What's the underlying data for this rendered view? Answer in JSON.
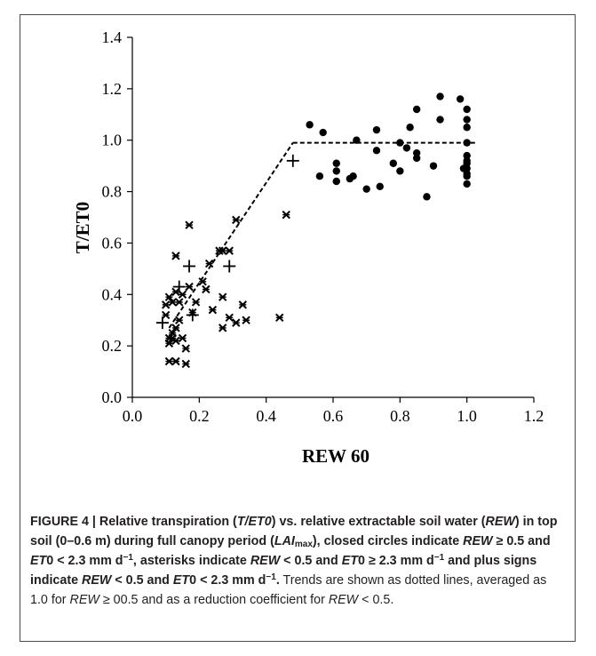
{
  "chart_data": {
    "type": "scatter",
    "xlabel": "REW 60",
    "ylabel": "T/ET0",
    "xlim": [
      0.0,
      1.2
    ],
    "ylim": [
      0.0,
      1.4
    ],
    "xticks": [
      "0.0",
      "0.2",
      "0.4",
      "0.6",
      "0.8",
      "1.0",
      "1.2"
    ],
    "yticks": [
      "0.0",
      "0.2",
      "0.4",
      "0.6",
      "0.8",
      "1.0",
      "1.2",
      "1.4"
    ],
    "grid": false,
    "legend": "none",
    "series": [
      {
        "marker": "circle",
        "points": [
          [
            0.53,
            1.06
          ],
          [
            0.56,
            0.86
          ],
          [
            0.57,
            1.03
          ],
          [
            0.61,
            0.88
          ],
          [
            0.61,
            0.91
          ],
          [
            0.61,
            0.84
          ],
          [
            0.65,
            0.85
          ],
          [
            0.66,
            0.86
          ],
          [
            0.67,
            1.0
          ],
          [
            0.7,
            0.81
          ],
          [
            0.73,
            0.96
          ],
          [
            0.73,
            1.04
          ],
          [
            0.74,
            0.82
          ],
          [
            0.78,
            0.91
          ],
          [
            0.8,
            0.88
          ],
          [
            0.8,
            0.99
          ],
          [
            0.82,
            0.97
          ],
          [
            0.83,
            1.05
          ],
          [
            0.85,
            0.95
          ],
          [
            0.85,
            1.12
          ],
          [
            0.85,
            0.93
          ],
          [
            0.88,
            0.78
          ],
          [
            0.9,
            0.9
          ],
          [
            0.92,
            1.17
          ],
          [
            0.92,
            1.08
          ],
          [
            0.98,
            1.16
          ],
          [
            0.99,
            0.89
          ],
          [
            1.0,
            1.12
          ],
          [
            1.0,
            1.08
          ],
          [
            1.0,
            1.05
          ],
          [
            1.0,
            0.99
          ],
          [
            1.0,
            0.94
          ],
          [
            1.0,
            0.92
          ],
          [
            1.0,
            0.91
          ],
          [
            1.0,
            0.89
          ],
          [
            1.0,
            0.87
          ],
          [
            1.0,
            0.86
          ],
          [
            1.0,
            0.83
          ]
        ]
      },
      {
        "marker": "asterisk",
        "points": [
          [
            0.1,
            0.36
          ],
          [
            0.1,
            0.32
          ],
          [
            0.11,
            0.39
          ],
          [
            0.11,
            0.23
          ],
          [
            0.11,
            0.21
          ],
          [
            0.11,
            0.14
          ],
          [
            0.12,
            0.37
          ],
          [
            0.12,
            0.25
          ],
          [
            0.12,
            0.23
          ],
          [
            0.13,
            0.55
          ],
          [
            0.13,
            0.41
          ],
          [
            0.13,
            0.27
          ],
          [
            0.13,
            0.22
          ],
          [
            0.13,
            0.14
          ],
          [
            0.14,
            0.3
          ],
          [
            0.14,
            0.37
          ],
          [
            0.15,
            0.4
          ],
          [
            0.15,
            0.23
          ],
          [
            0.16,
            0.19
          ],
          [
            0.16,
            0.13
          ],
          [
            0.17,
            0.43
          ],
          [
            0.17,
            0.67
          ],
          [
            0.18,
            0.33
          ],
          [
            0.19,
            0.37
          ],
          [
            0.21,
            0.45
          ],
          [
            0.22,
            0.42
          ],
          [
            0.23,
            0.52
          ],
          [
            0.24,
            0.34
          ],
          [
            0.26,
            0.57
          ],
          [
            0.27,
            0.57
          ],
          [
            0.27,
            0.39
          ],
          [
            0.27,
            0.27
          ],
          [
            0.29,
            0.57
          ],
          [
            0.29,
            0.31
          ],
          [
            0.31,
            0.29
          ],
          [
            0.31,
            0.69
          ],
          [
            0.33,
            0.36
          ],
          [
            0.34,
            0.3
          ],
          [
            0.44,
            0.31
          ],
          [
            0.46,
            0.71
          ]
        ]
      },
      {
        "marker": "plus",
        "points": [
          [
            0.09,
            0.29
          ],
          [
            0.14,
            0.43
          ],
          [
            0.17,
            0.51
          ],
          [
            0.18,
            0.32
          ],
          [
            0.29,
            0.51
          ],
          [
            0.48,
            0.92
          ]
        ]
      }
    ],
    "trend_lines": [
      {
        "style": "dashed",
        "points": [
          [
            0.11,
            0.27
          ],
          [
            0.48,
            0.99
          ]
        ]
      },
      {
        "style": "dashed",
        "points": [
          [
            0.48,
            0.99
          ],
          [
            1.03,
            0.99
          ]
        ]
      }
    ]
  },
  "caption": {
    "bold_parts": [
      "FIGURE 4 | Relative transpiration (",
      "T/ET0",
      ") vs. relative extractable soil water (",
      "REW",
      ") in top soil (0–0.6 m) during full canopy period (",
      "LAI",
      "max",
      "), closed circles indicate ",
      "REW",
      " ≥ 0.5 and ",
      "ET",
      "0 < 2.3 mm d",
      "−1",
      ", asterisks indicate ",
      "REW",
      " < 0.5 and ",
      "ET",
      "0 ≥ 2.3 mm d",
      "−1",
      " and plus signs indicate ",
      "REW",
      " < 0.5 and ",
      "ET",
      "0 < 2.3 mm d",
      "−1",
      "."
    ],
    "normal_parts": [
      " Trends are shown as dotted lines, averaged as 1.0 for ",
      "REW",
      " ≥ 00.5 and as a reduction coefficient for ",
      "REW",
      " < 0.5."
    ]
  }
}
